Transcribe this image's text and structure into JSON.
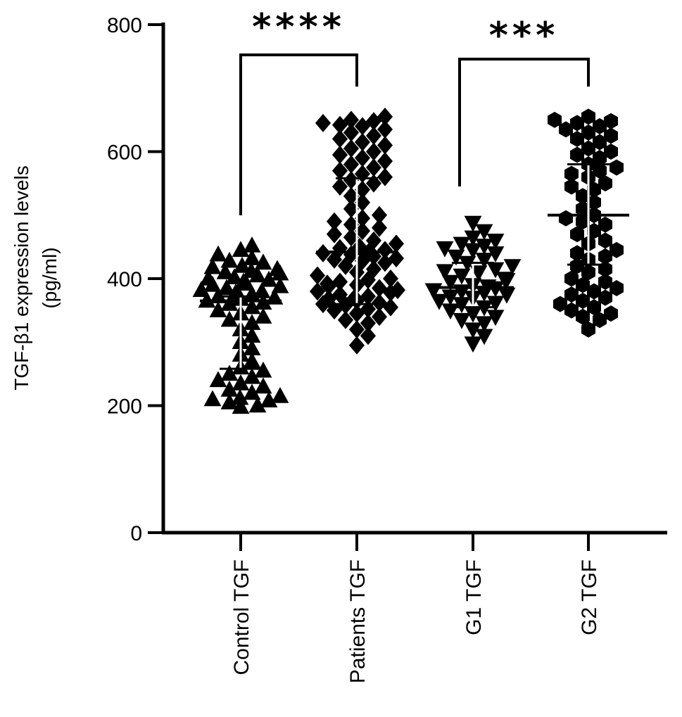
{
  "chart_data": {
    "type": "scatter",
    "ylabel_line1": "TGF-β1 expression levels",
    "ylabel_line2": "(pg/ml)",
    "ylim": [
      0,
      800
    ],
    "yticks": [
      0,
      200,
      400,
      600,
      800
    ],
    "yticks_text": [
      "0",
      "200",
      "400",
      "600",
      "800"
    ],
    "categories": [
      "Control TGF",
      "Patients TGF",
      "G1 TGF",
      "G2 TGF"
    ],
    "marker_color": "#000000",
    "series": [
      {
        "category": "Control TGF",
        "marker": "triangle-up",
        "mean": 365,
        "sd_low": 258,
        "sd_high": 372,
        "values": [
          452,
          445,
          438,
          432,
          428,
          425,
          420,
          418,
          415,
          412,
          410,
          408,
          405,
          402,
          400,
          398,
          395,
          392,
          390,
          388,
          385,
          382,
          380,
          378,
          375,
          372,
          370,
          368,
          365,
          362,
          360,
          355,
          350,
          345,
          340,
          335,
          330,
          320,
          310,
          300,
          290,
          280,
          270,
          260,
          255,
          250,
          245,
          240,
          235,
          230,
          225,
          220,
          215,
          212,
          210,
          208,
          205,
          200,
          198
        ]
      },
      {
        "category": "Patients TGF",
        "marker": "diamond",
        "mean": 442,
        "sd_low": 360,
        "sd_high": 558,
        "values": [
          655,
          650,
          648,
          645,
          642,
          640,
          635,
          630,
          625,
          620,
          615,
          610,
          605,
          600,
          595,
          590,
          585,
          580,
          575,
          570,
          565,
          560,
          555,
          550,
          545,
          540,
          530,
          520,
          510,
          500,
          495,
          490,
          485,
          480,
          475,
          470,
          465,
          460,
          455,
          450,
          448,
          445,
          442,
          440,
          438,
          435,
          432,
          430,
          428,
          425,
          420,
          415,
          410,
          405,
          400,
          398,
          395,
          392,
          390,
          388,
          385,
          382,
          380,
          378,
          375,
          372,
          370,
          368,
          365,
          362,
          360,
          358,
          355,
          352,
          350,
          345,
          340,
          335,
          330,
          320,
          310,
          295
        ]
      },
      {
        "category": "G1 TGF",
        "marker": "triangle-down",
        "mean": 386,
        "sd_low": 355,
        "sd_high": 425,
        "values": [
          488,
          475,
          465,
          460,
          455,
          452,
          448,
          445,
          440,
          435,
          430,
          425,
          420,
          415,
          412,
          410,
          405,
          400,
          398,
          395,
          390,
          388,
          385,
          382,
          380,
          378,
          375,
          372,
          370,
          365,
          362,
          360,
          355,
          350,
          345,
          340,
          335,
          330,
          320,
          310,
          298
        ]
      },
      {
        "category": "G2 TGF",
        "marker": "hexagon",
        "mean": 500,
        "sd_low": 422,
        "sd_high": 580,
        "values": [
          655,
          650,
          648,
          645,
          640,
          635,
          630,
          625,
          620,
          615,
          605,
          600,
          595,
          590,
          580,
          575,
          570,
          565,
          560,
          550,
          545,
          540,
          530,
          520,
          510,
          500,
          495,
          490,
          485,
          475,
          470,
          460,
          455,
          445,
          440,
          435,
          430,
          420,
          415,
          410,
          400,
          395,
          390,
          385,
          380,
          375,
          370,
          365,
          360,
          355,
          350,
          345,
          340,
          335,
          320
        ]
      }
    ],
    "significance": [
      {
        "from": "Control TGF",
        "to": "Patients TGF",
        "label": "****"
      },
      {
        "from": "G1 TGF",
        "to": "G2 TGF",
        "label": "***"
      }
    ]
  }
}
